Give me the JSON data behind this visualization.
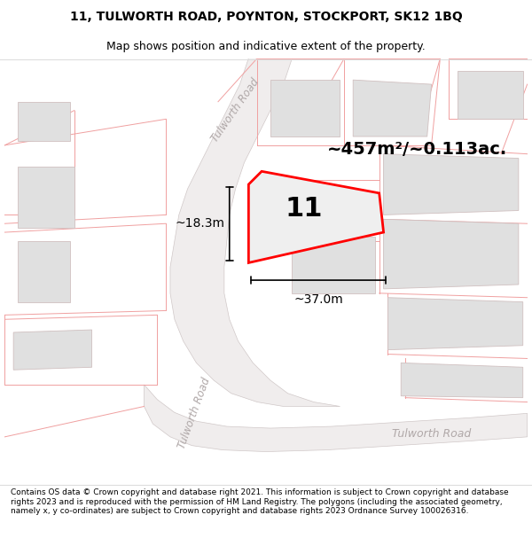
{
  "title_line1": "11, TULWORTH ROAD, POYNTON, STOCKPORT, SK12 1BQ",
  "title_line2": "Map shows position and indicative extent of the property.",
  "footer_text": "Contains OS data © Crown copyright and database right 2021. This information is subject to Crown copyright and database rights 2023 and is reproduced with the permission of HM Land Registry. The polygons (including the associated geometry, namely x, y co-ordinates) are subject to Crown copyright and database rights 2023 Ordnance Survey 100026316.",
  "area_label": "~457m²/~0.113ac.",
  "number_label": "11",
  "width_label": "~37.0m",
  "height_label": "~18.3m",
  "bg_color": "#ffffff",
  "map_bg": "#ffffff",
  "road_fill": "#f0eded",
  "plot_fill": "#ebebeb",
  "plot_outline": "#ff0000",
  "road_line_color": "#f0a0a0",
  "road_center_color": "#d0c8c8",
  "building_fill": "#e0e0e0",
  "building_outline": "#d0c0c0",
  "text_color": "#000000",
  "road_text_color": "#b0a8a8",
  "title_fontsize": 10,
  "subtitle_fontsize": 9,
  "area_fontsize": 14,
  "number_fontsize": 22,
  "measure_fontsize": 10,
  "road_label_fontsize": 8.5,
  "footer_fontsize": 6.5
}
